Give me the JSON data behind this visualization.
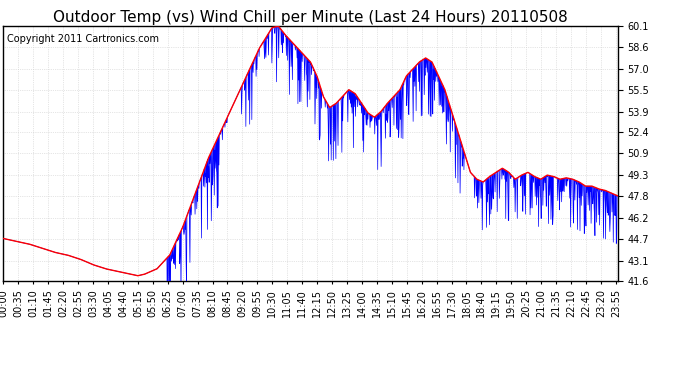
{
  "title": "Outdoor Temp (vs) Wind Chill per Minute (Last 24 Hours) 20110508",
  "copyright": "Copyright 2011 Cartronics.com",
  "ylim": [
    41.6,
    60.1
  ],
  "yticks": [
    41.6,
    43.1,
    44.7,
    46.2,
    47.8,
    49.3,
    50.9,
    52.4,
    53.9,
    55.5,
    57.0,
    58.6,
    60.1
  ],
  "bg_color": "#ffffff",
  "plot_bg_color": "#ffffff",
  "grid_color": "#cccccc",
  "red_line_color": "#ff0000",
  "blue_fill_color": "#0000ff",
  "title_fontsize": 11,
  "copyright_fontsize": 7,
  "tick_fontsize": 7,
  "x_labels": [
    "00:00",
    "00:35",
    "01:10",
    "01:45",
    "02:20",
    "02:55",
    "03:30",
    "04:05",
    "04:40",
    "05:15",
    "05:50",
    "06:25",
    "07:00",
    "07:35",
    "08:10",
    "08:45",
    "09:20",
    "09:55",
    "10:30",
    "11:05",
    "11:40",
    "12:15",
    "12:50",
    "13:25",
    "14:00",
    "14:35",
    "15:10",
    "15:45",
    "16:20",
    "16:55",
    "17:30",
    "18:05",
    "18:40",
    "19:15",
    "19:50",
    "20:25",
    "21:00",
    "21:35",
    "22:10",
    "22:45",
    "23:20",
    "23:55"
  ]
}
